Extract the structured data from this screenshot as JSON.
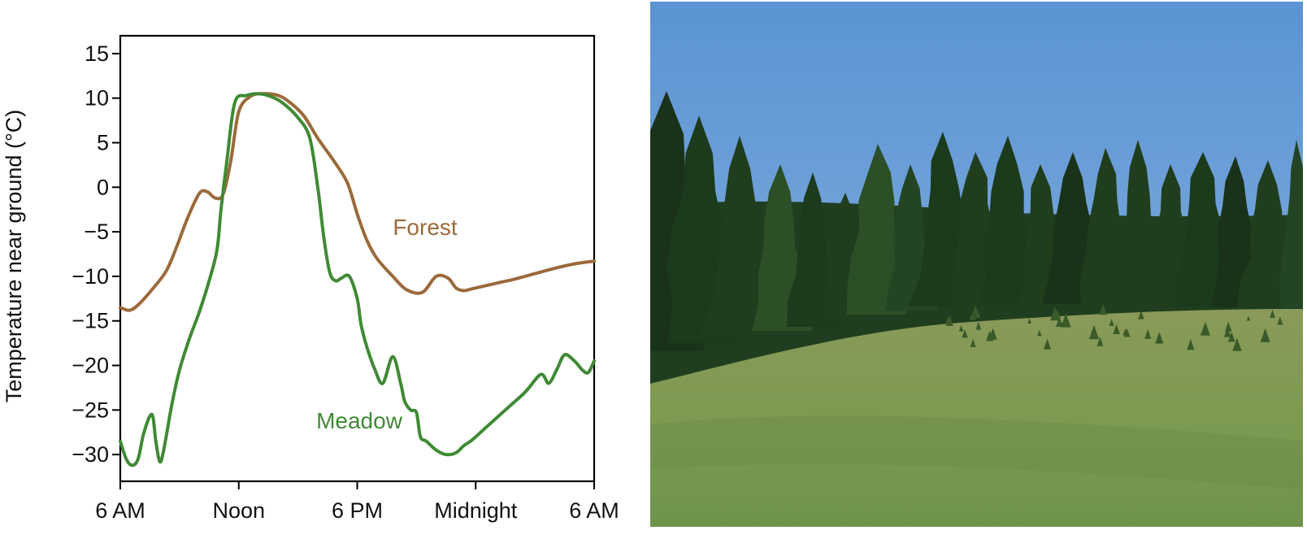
{
  "chart_data": {
    "type": "line",
    "title": "",
    "xlabel": "",
    "ylabel": "Temperature near ground (°C)",
    "x_ticks": [
      "6 AM",
      "Noon",
      "6 PM",
      "Midnight",
      "6 AM"
    ],
    "xlim_hours": [
      0,
      24
    ],
    "ylim": [
      -33,
      17
    ],
    "y_ticks": [
      15,
      10,
      5,
      0,
      -5,
      -10,
      -15,
      -20,
      -25,
      -30
    ],
    "y_tick_labels": [
      "15",
      "10",
      "5",
      "0",
      "−5",
      "−10",
      "−15",
      "−20",
      "−25",
      "−30"
    ],
    "grid": false,
    "legend": "none (series labeled inline)",
    "series": [
      {
        "name": "Forest",
        "color": "#9b6a3a",
        "x": [
          0,
          0.5,
          1.0,
          1.6,
          2.3,
          2.8,
          3.4,
          4.0,
          4.4,
          4.8,
          5.2,
          5.6,
          6.0,
          6.6,
          7.2,
          8.0,
          8.6,
          9.3,
          10.0,
          10.8,
          11.5,
          12.0,
          12.5,
          13.0,
          13.8,
          14.5,
          15.3,
          16.0,
          16.6,
          17.0,
          17.4,
          17.8,
          18.2,
          19.0,
          20.0,
          21.0,
          22.0,
          23.0,
          24.0
        ],
        "y": [
          -13.5,
          -13.8,
          -13.0,
          -11.5,
          -9.5,
          -7.0,
          -3.5,
          -0.7,
          -0.5,
          -1.2,
          -0.8,
          3.0,
          8.5,
          10.2,
          10.5,
          10.3,
          9.5,
          8.0,
          5.5,
          3.0,
          0.5,
          -3.0,
          -6.0,
          -8.0,
          -10.0,
          -11.5,
          -11.8,
          -10.0,
          -10.2,
          -11.3,
          -11.6,
          -11.4,
          -11.2,
          -10.8,
          -10.3,
          -9.7,
          -9.1,
          -8.6,
          -8.3
        ]
      },
      {
        "name": "Meadow",
        "color": "#3f8a35",
        "x": [
          0,
          0.3,
          0.6,
          0.9,
          1.2,
          1.6,
          1.8,
          2.0,
          2.2,
          2.6,
          3.0,
          3.5,
          4.0,
          4.5,
          4.9,
          5.1,
          5.4,
          5.8,
          6.4,
          7.0,
          7.6,
          8.2,
          9.0,
          9.6,
          10.0,
          10.3,
          10.6,
          10.9,
          11.2,
          11.6,
          12.0,
          12.2,
          12.5,
          12.9,
          13.3,
          13.8,
          14.2,
          14.4,
          14.7,
          15.0,
          15.2,
          15.5,
          16.0,
          16.5,
          17.0,
          17.4,
          17.8,
          18.5,
          19.5,
          20.5,
          21.3,
          21.7,
          22.1,
          22.5,
          23.0,
          23.4,
          23.7,
          24.0
        ],
        "y": [
          -28.5,
          -30.5,
          -31.2,
          -30.5,
          -27.5,
          -25.5,
          -28.5,
          -30.8,
          -29.5,
          -24.5,
          -20.5,
          -17.0,
          -14.0,
          -10.5,
          -7.0,
          -2.5,
          3.0,
          9.5,
          10.3,
          10.5,
          10.2,
          9.5,
          7.8,
          5.5,
          0.0,
          -5.5,
          -9.5,
          -10.5,
          -10.2,
          -10.0,
          -12.5,
          -15.5,
          -18.0,
          -20.5,
          -22.0,
          -19.0,
          -22.0,
          -24.0,
          -25.0,
          -25.3,
          -28.0,
          -28.5,
          -29.5,
          -30.0,
          -29.8,
          -29.0,
          -28.4,
          -27.0,
          -25.0,
          -23.0,
          -21.0,
          -22.0,
          -20.5,
          -18.8,
          -19.5,
          -20.5,
          -20.8,
          -19.5
        ]
      }
    ],
    "annotations": [
      {
        "text": "Forest",
        "series": "Forest"
      },
      {
        "text": "Meadow",
        "series": "Meadow"
      }
    ]
  },
  "photo": {
    "description_colors": {
      "sky": "#6b9fd8",
      "trees": "#1f3a1e",
      "meadow": "#7f9a55"
    }
  }
}
